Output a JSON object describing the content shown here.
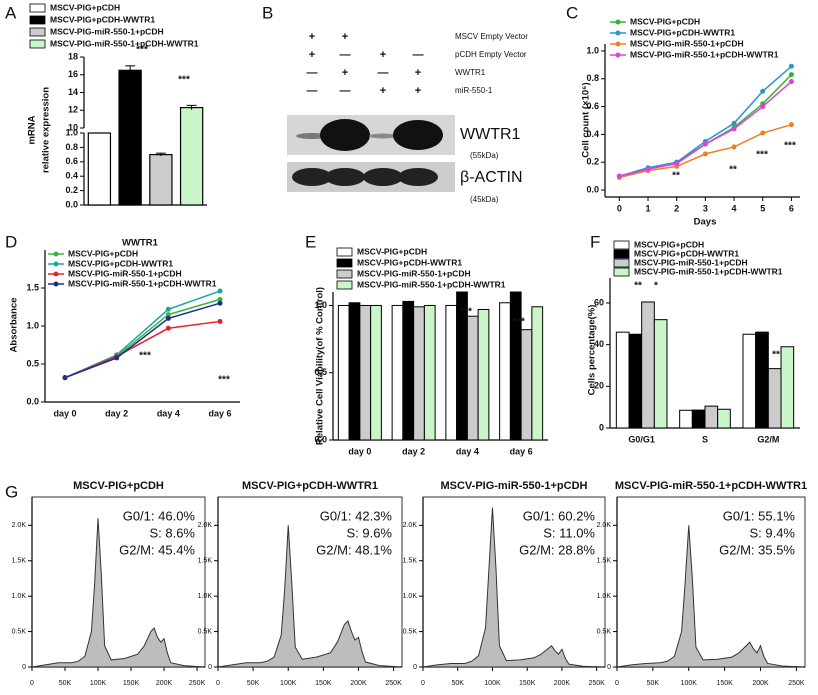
{
  "panel_labels": [
    "A",
    "B",
    "C",
    "D",
    "E",
    "F",
    "G"
  ],
  "blot": {
    "rows": [
      {
        "label": "MSCV Empty Vector",
        "signs": [
          "+",
          "+"
        ]
      },
      {
        "label": "pCDH Empty Vector",
        "signs": [
          "+",
          "—",
          "+",
          "—"
        ]
      },
      {
        "label": "WWTR1",
        "signs": [
          "—",
          "+",
          "—",
          "+"
        ]
      },
      {
        "label": "miR-550-1",
        "signs": [
          "—",
          "—",
          "+",
          "+"
        ]
      }
    ],
    "bands": [
      {
        "name": "WWTR1",
        "size": "(55kDa)"
      },
      {
        "name": "β-ACTIN",
        "size": "(45kDa)"
      }
    ]
  },
  "chart_data": [
    {
      "type": "bar",
      "categories": [
        "MSCV-PIG+pCDH",
        "MSCV-PIG+pCDH-WWTR1",
        "MSCV-PIG-miR-550-1+pCDH",
        "MSCV-PIG-miR-550-1+pCDH-WWTR1"
      ],
      "values": [
        1.0,
        16.5,
        0.7,
        12.3
      ],
      "errors": [
        0,
        0.5,
        0.02,
        0.25
      ],
      "colors": [
        "#ffffff",
        "#000000",
        "#cccccc",
        "#c9f5c9"
      ],
      "ylabel": [
        "mRNA",
        "relative expression"
      ],
      "xlabel": "WWTR1",
      "ylim": [
        0,
        18
      ],
      "axis_break": [
        1.0,
        10
      ],
      "yticks": [
        {
          "value": 0,
          "label": "0.0"
        },
        0.2,
        0.4,
        0.6,
        0.8,
        {
          "value": 1,
          "label": "1.0"
        },
        10,
        12,
        14,
        16,
        18
      ],
      "annotations": [
        "***",
        "***"
      ]
    },
    {
      "type": "line",
      "ylabel": "Cell count (×10⁶)",
      "xlabel": "Days",
      "x": [
        0,
        1,
        2,
        3,
        4,
        5,
        6
      ],
      "xlim": [
        -0.5,
        6.3
      ],
      "xticks": [
        0,
        1,
        2,
        3,
        4,
        5,
        6
      ],
      "ylim": [
        -0.05,
        1.05
      ],
      "yticks": [
        {
          "value": 0,
          "label": "0.0"
        },
        0.2,
        0.4,
        0.6,
        0.8,
        {
          "value": 1,
          "label": "1.0"
        }
      ],
      "series": [
        {
          "name": "MSCV-PIG+pCDH",
          "color": "#2db82d",
          "values": [
            0.1,
            0.15,
            0.2,
            0.33,
            0.45,
            0.62,
            0.83
          ]
        },
        {
          "name": "MSCV-PIG+pCDH-WWTR1",
          "color": "#2a95c9",
          "values": [
            0.1,
            0.16,
            0.2,
            0.35,
            0.48,
            0.71,
            0.89
          ]
        },
        {
          "name": "MSCV-PIG-miR-550-1+pCDH",
          "color": "#f07f22",
          "values": [
            0.09,
            0.14,
            0.17,
            0.26,
            0.31,
            0.41,
            0.47
          ]
        },
        {
          "name": "MSCV-PIG-miR-550-1+pCDH-WWTR1",
          "color": "#e040e0",
          "values": [
            0.1,
            0.15,
            0.19,
            0.33,
            0.44,
            0.6,
            0.78
          ]
        }
      ],
      "annotations": [
        "**",
        "**",
        "***",
        "***"
      ]
    },
    {
      "type": "line",
      "ylabel": "Absorbance",
      "categories": [
        "day 0",
        "day 2",
        "day 4",
        "day 6"
      ],
      "ylim": [
        0,
        2
      ],
      "yticks": [
        {
          "value": 0,
          "label": "0.0"
        },
        0.5,
        {
          "value": 1,
          "label": "1.0"
        },
        1.5
      ],
      "series": [
        {
          "name": "MSCV-PIG+pCDH",
          "color": "#3cb43c",
          "values": [
            0.32,
            0.6,
            1.15,
            1.35
          ]
        },
        {
          "name": "MSCV-PIG+pCDH-WWTR1",
          "color": "#1aa5a5",
          "values": [
            0.32,
            0.62,
            1.22,
            1.46
          ]
        },
        {
          "name": "MSCV-PIG-miR-550-1+pCDH",
          "color": "#e8202a",
          "values": [
            0.32,
            0.6,
            0.97,
            1.06
          ]
        },
        {
          "name": "MSCV-PIG-miR-550-1+pCDH-WWTR1",
          "color": "#1c2e8c",
          "values": [
            0.32,
            0.58,
            1.1,
            1.3
          ]
        }
      ],
      "annotations": [
        "***",
        "***"
      ]
    },
    {
      "type": "bar",
      "ylabel": "Relative Cell Viability(of % Control)",
      "categories": [
        "day 0",
        "day 2",
        "day 4",
        "day 6"
      ],
      "ylim": [
        0,
        1.1
      ],
      "yticks": [
        {
          "value": 0,
          "label": "0.0"
        },
        0.5,
        {
          "value": 1,
          "label": "1.0"
        }
      ],
      "series": [
        {
          "name": "MSCV-PIG+pCDH",
          "color": "#ffffff",
          "values": [
            1.0,
            1.0,
            1.0,
            1.02
          ]
        },
        {
          "name": "MSCV-PIG+pCDH-WWTR1",
          "color": "#000000",
          "values": [
            1.02,
            1.03,
            1.1,
            1.1
          ]
        },
        {
          "name": "MSCV-PIG-miR-550-1+pCDH",
          "color": "#cccccc",
          "values": [
            1.0,
            0.99,
            0.92,
            0.82
          ]
        },
        {
          "name": "MSCV-PIG-miR-550-1+pCDH-WWTR1",
          "color": "#c9f5c9",
          "values": [
            1.0,
            1.0,
            0.97,
            0.99
          ]
        }
      ],
      "annotations": [
        "***",
        "***"
      ]
    },
    {
      "type": "bar",
      "ylabel": "Cells percentage(%)",
      "categories": [
        "G0/G1",
        "S",
        "G2/M"
      ],
      "ylim": [
        0,
        72
      ],
      "yticks": [
        0,
        20,
        40,
        60
      ],
      "series": [
        {
          "name": "MSCV-PIG+pCDH",
          "color": "#ffffff",
          "values": [
            46,
            8.5,
            45
          ]
        },
        {
          "name": "MSCV-PIG+pCDH-WWTR1",
          "color": "#000000",
          "values": [
            45,
            8.6,
            46
          ]
        },
        {
          "name": "MSCV-PIG-miR-550-1+pCDH",
          "color": "#cccccc",
          "values": [
            60.5,
            10.5,
            28.5
          ]
        },
        {
          "name": "MSCV-PIG-miR-550-1+pCDH-WWTR1",
          "color": "#c9f5c9",
          "values": [
            52,
            9,
            39
          ]
        }
      ],
      "annotations": [
        "**",
        "*",
        "***",
        "**"
      ]
    },
    {
      "type": "area",
      "title": "MSCV-PIG+pCDH",
      "stats": [
        "G0/1: 46.0%",
        "S: 8.6%",
        "G2/M: 45.4%"
      ],
      "color": "#bdbdbd",
      "x": [
        0,
        20000,
        40000,
        60000,
        70000,
        80000,
        90000,
        95000,
        100000,
        105000,
        110000,
        120000,
        140000,
        160000,
        170000,
        180000,
        185000,
        190000,
        195000,
        200000,
        205000,
        210000,
        230000,
        260000
      ],
      "values": [
        0,
        30,
        60,
        60,
        80,
        150,
        500,
        1200,
        2100,
        1300,
        300,
        100,
        120,
        180,
        300,
        500,
        550,
        420,
        350,
        400,
        200,
        60,
        20,
        0
      ],
      "xlim": [
        0,
        262000
      ],
      "xticks": [
        0,
        {
          "value": 50000,
          "label": "50K"
        },
        {
          "value": 100000,
          "label": "100K"
        },
        {
          "value": 150000,
          "label": "150K"
        },
        {
          "value": 200000,
          "label": "200K"
        },
        {
          "value": 250000,
          "label": "250K"
        }
      ],
      "ylim": [
        0,
        2400
      ],
      "yticks": [
        0,
        {
          "value": 500,
          "label": "0.5K"
        },
        {
          "value": 1000,
          "label": "1.0K"
        },
        {
          "value": 1500,
          "label": "1.5K"
        },
        {
          "value": 2000,
          "label": "2.0K"
        }
      ]
    },
    {
      "type": "area",
      "title": "MSCV-PIG+pCDH-WWTR1",
      "stats": [
        "G0/1: 42.3%",
        "S: 9.6%",
        "G2/M: 48.1%"
      ],
      "color": "#bdbdbd",
      "x": [
        0,
        20000,
        40000,
        60000,
        70000,
        80000,
        90000,
        95000,
        100000,
        105000,
        110000,
        120000,
        140000,
        160000,
        170000,
        180000,
        185000,
        190000,
        195000,
        200000,
        205000,
        210000,
        230000,
        260000
      ],
      "values": [
        0,
        30,
        60,
        60,
        80,
        140,
        450,
        1100,
        2000,
        1200,
        280,
        110,
        140,
        200,
        350,
        600,
        650,
        500,
        380,
        420,
        220,
        70,
        20,
        0
      ],
      "xlim": [
        0,
        262000
      ],
      "xticks": [
        0,
        {
          "value": 50000,
          "label": "50K"
        },
        {
          "value": 100000,
          "label": "100K"
        },
        {
          "value": 150000,
          "label": "150K"
        },
        {
          "value": 200000,
          "label": "200K"
        },
        {
          "value": 250000,
          "label": "250K"
        }
      ],
      "ylim": [
        0,
        2400
      ],
      "yticks": [
        0,
        {
          "value": 500,
          "label": "0.5K"
        },
        {
          "value": 1000,
          "label": "1.0K"
        },
        {
          "value": 1500,
          "label": "1.5K"
        },
        {
          "value": 2000,
          "label": "2.0K"
        }
      ]
    },
    {
      "type": "area",
      "title": "MSCV-PIG-miR-550-1+pCDH",
      "stats": [
        "G0/1: 60.2%",
        "S: 11.0%",
        "G2/M: 28.8%"
      ],
      "color": "#bdbdbd",
      "x": [
        0,
        20000,
        40000,
        60000,
        70000,
        80000,
        90000,
        95000,
        100000,
        105000,
        110000,
        120000,
        140000,
        160000,
        170000,
        180000,
        185000,
        190000,
        195000,
        200000,
        205000,
        210000,
        230000,
        260000
      ],
      "values": [
        0,
        30,
        50,
        50,
        80,
        160,
        550,
        1400,
        2250,
        1400,
        300,
        90,
        100,
        130,
        180,
        260,
        300,
        230,
        180,
        250,
        120,
        40,
        10,
        0
      ],
      "xlim": [
        0,
        262000
      ],
      "xticks": [
        0,
        {
          "value": 50000,
          "label": "50K"
        },
        {
          "value": 100000,
          "label": "100K"
        },
        {
          "value": 150000,
          "label": "150K"
        },
        {
          "value": 200000,
          "label": "200K"
        },
        {
          "value": 250000,
          "label": "250K"
        }
      ],
      "ylim": [
        0,
        2400
      ],
      "yticks": [
        0,
        {
          "value": 500,
          "label": "0.5K"
        },
        {
          "value": 1000,
          "label": "1.0K"
        },
        {
          "value": 1500,
          "label": "1.5K"
        },
        {
          "value": 2000,
          "label": "2.0K"
        }
      ]
    },
    {
      "type": "area",
      "title": "MSCV-PIG-miR-550-1+pCDH-WWTR1",
      "stats": [
        "G0/1: 55.1%",
        "S: 9.4%",
        "G2/M: 35.5%"
      ],
      "color": "#bdbdbd",
      "x": [
        0,
        20000,
        40000,
        60000,
        70000,
        80000,
        90000,
        95000,
        100000,
        105000,
        110000,
        120000,
        140000,
        160000,
        170000,
        180000,
        185000,
        190000,
        195000,
        200000,
        205000,
        210000,
        230000,
        260000
      ],
      "values": [
        0,
        30,
        50,
        60,
        80,
        150,
        500,
        1200,
        2000,
        1250,
        280,
        100,
        110,
        140,
        200,
        300,
        350,
        260,
        200,
        300,
        140,
        50,
        15,
        0
      ],
      "xlim": [
        0,
        262000
      ],
      "xticks": [
        0,
        {
          "value": 50000,
          "label": "50K"
        },
        {
          "value": 100000,
          "label": "100K"
        },
        {
          "value": 150000,
          "label": "150K"
        },
        {
          "value": 200000,
          "label": "200K"
        },
        {
          "value": 250000,
          "label": "250K"
        }
      ],
      "ylim": [
        0,
        2400
      ],
      "yticks": [
        0,
        {
          "value": 500,
          "label": "0.5K"
        },
        {
          "value": 1000,
          "label": "1.0K"
        },
        {
          "value": 1500,
          "label": "1.5K"
        },
        {
          "value": 2000,
          "label": "2.0K"
        }
      ]
    }
  ]
}
